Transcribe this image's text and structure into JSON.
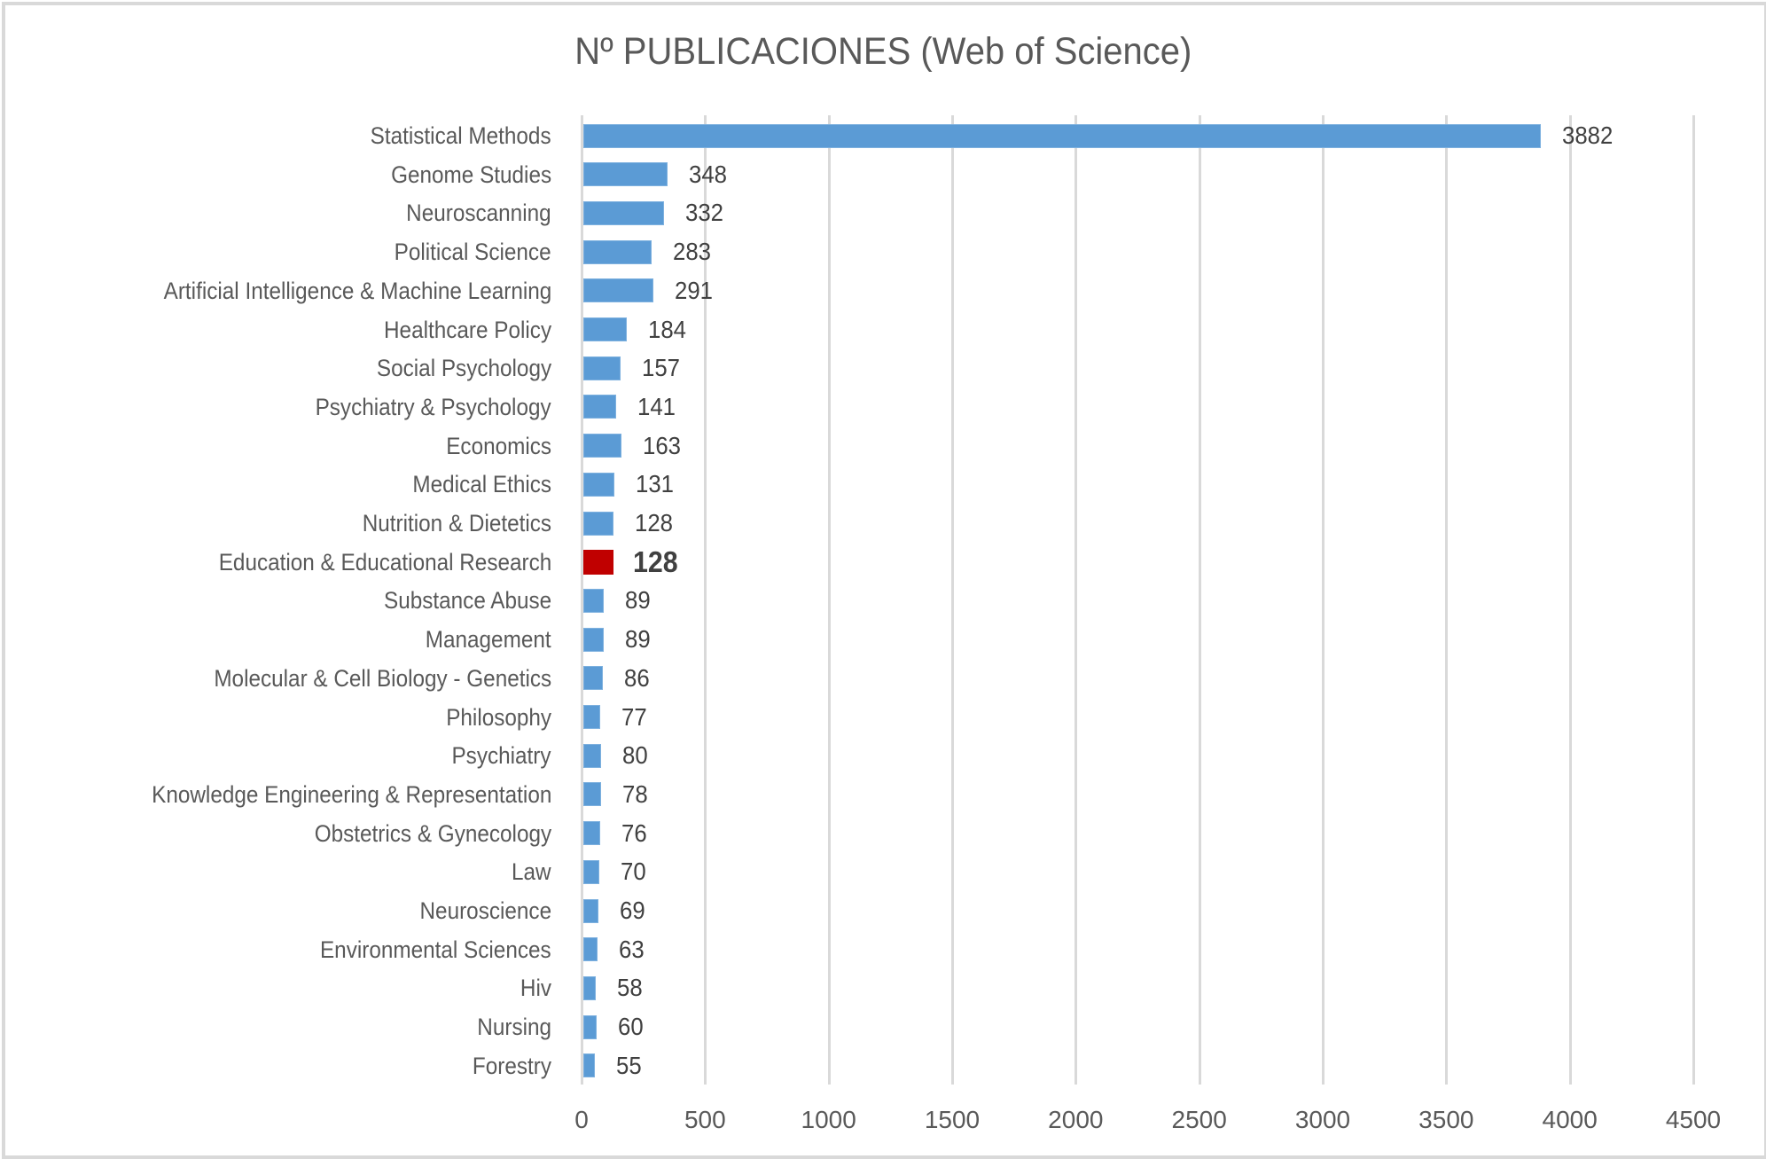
{
  "chart_data": {
    "type": "bar",
    "orientation": "horizontal",
    "title": "Nº PUBLICACIONES (Web of Science)",
    "xlabel": "",
    "ylabel": "",
    "xlim": [
      0,
      4500
    ],
    "x_ticks": [
      0,
      500,
      1000,
      1500,
      2000,
      2500,
      3000,
      3500,
      4000,
      4500
    ],
    "grid": "vertical",
    "legend": null,
    "categories": [
      "Statistical Methods",
      "Genome Studies",
      "Neuroscanning",
      "Political Science",
      "Artificial Intelligence & Machine Learning",
      "Healthcare Policy",
      "Social Psychology",
      "Psychiatry & Psychology",
      "Economics",
      "Medical Ethics",
      "Nutrition & Dietetics",
      "Education & Educational Research",
      "Substance Abuse",
      "Management",
      "Molecular & Cell Biology - Genetics",
      "Philosophy",
      "Psychiatry",
      "Knowledge Engineering & Representation",
      "Obstetrics & Gynecology",
      "Law",
      "Neuroscience",
      "Environmental Sciences",
      "Hiv",
      "Nursing",
      "Forestry"
    ],
    "values": [
      3882,
      348,
      332,
      283,
      291,
      184,
      157,
      141,
      163,
      131,
      128,
      128,
      89,
      89,
      86,
      77,
      80,
      78,
      76,
      70,
      69,
      63,
      58,
      60,
      55
    ],
    "highlight_index": 11,
    "colors": {
      "bar": "#5B9BD5",
      "highlight": "#C00000",
      "grid": "#D9D9D9",
      "text": "#595959",
      "value_text": "#404040"
    }
  }
}
